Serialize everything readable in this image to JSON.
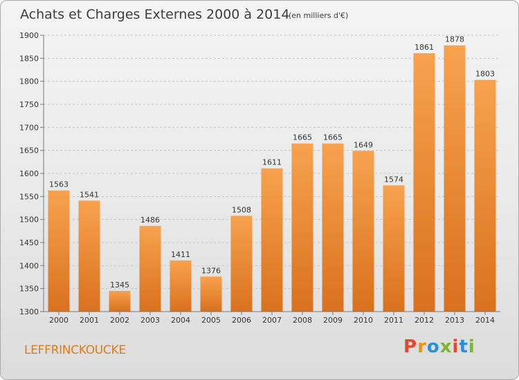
{
  "chart_data": {
    "type": "bar",
    "title": "Achats et Charges Externes 2000 à 2014",
    "subtitle": "(en milliers d'€)",
    "categories": [
      "2000",
      "2001",
      "2002",
      "2003",
      "2004",
      "2005",
      "2006",
      "2007",
      "2008",
      "2009",
      "2010",
      "2011",
      "2012",
      "2013",
      "2014"
    ],
    "values": [
      1563,
      1541,
      1345,
      1486,
      1411,
      1376,
      1508,
      1611,
      1665,
      1665,
      1649,
      1574,
      1861,
      1878,
      1803
    ],
    "ylim": [
      1300,
      1900
    ],
    "yticks": [
      1300,
      1350,
      1400,
      1450,
      1500,
      1550,
      1600,
      1650,
      1700,
      1750,
      1800,
      1850,
      1900
    ],
    "grid": "horizontal",
    "bar_color_top": "#f7a24f",
    "bar_color_bottom": "#d9711d"
  },
  "footer": {
    "place": "LEFFRINCKOUCKE",
    "place_color": "#e07b1a",
    "brand": "Proxiti",
    "brand_colors": [
      "#e8452c",
      "#f39200",
      "#2c8fd6",
      "#7ab829",
      "#e8452c",
      "#2c8fd6",
      "#7ab829"
    ]
  }
}
